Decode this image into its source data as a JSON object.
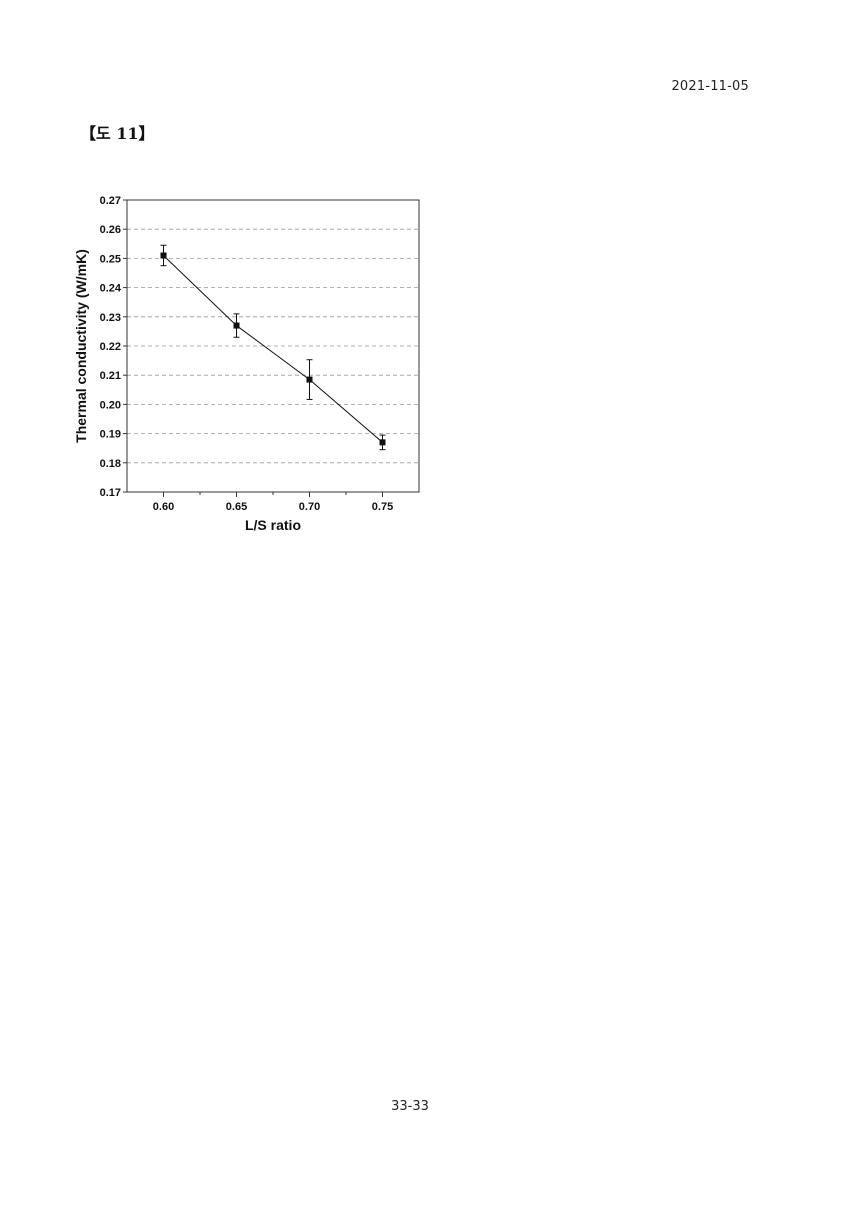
{
  "header": {
    "date": "2021-11-05"
  },
  "figure": {
    "label": "【도 11】"
  },
  "footer": {
    "page": "33-33"
  },
  "chart_data": {
    "type": "line",
    "xlabel": "L/S ratio",
    "ylabel": "Thermal conductivity (W/mK)",
    "xlim": [
      0.575,
      0.775
    ],
    "ylim": [
      0.17,
      0.27
    ],
    "xticks": [
      0.6,
      0.65,
      0.7,
      0.75
    ],
    "xtick_labels": [
      "0.60",
      "0.65",
      "0.70",
      "0.75"
    ],
    "yticks": [
      0.17,
      0.18,
      0.19,
      0.2,
      0.21,
      0.22,
      0.23,
      0.24,
      0.25,
      0.26,
      0.27
    ],
    "ytick_labels": [
      "0.17",
      "0.18",
      "0.19",
      "0.20",
      "0.21",
      "0.22",
      "0.23",
      "0.24",
      "0.25",
      "0.26",
      "0.27"
    ],
    "grid": "horizontal-dashed",
    "series": [
      {
        "x": [
          0.6,
          0.65,
          0.7,
          0.75
        ],
        "y": [
          0.251,
          0.227,
          0.2085,
          0.187
        ],
        "error": [
          0.0035,
          0.004,
          0.0068,
          0.0025
        ],
        "marker": "square",
        "color": "#111111"
      }
    ]
  }
}
